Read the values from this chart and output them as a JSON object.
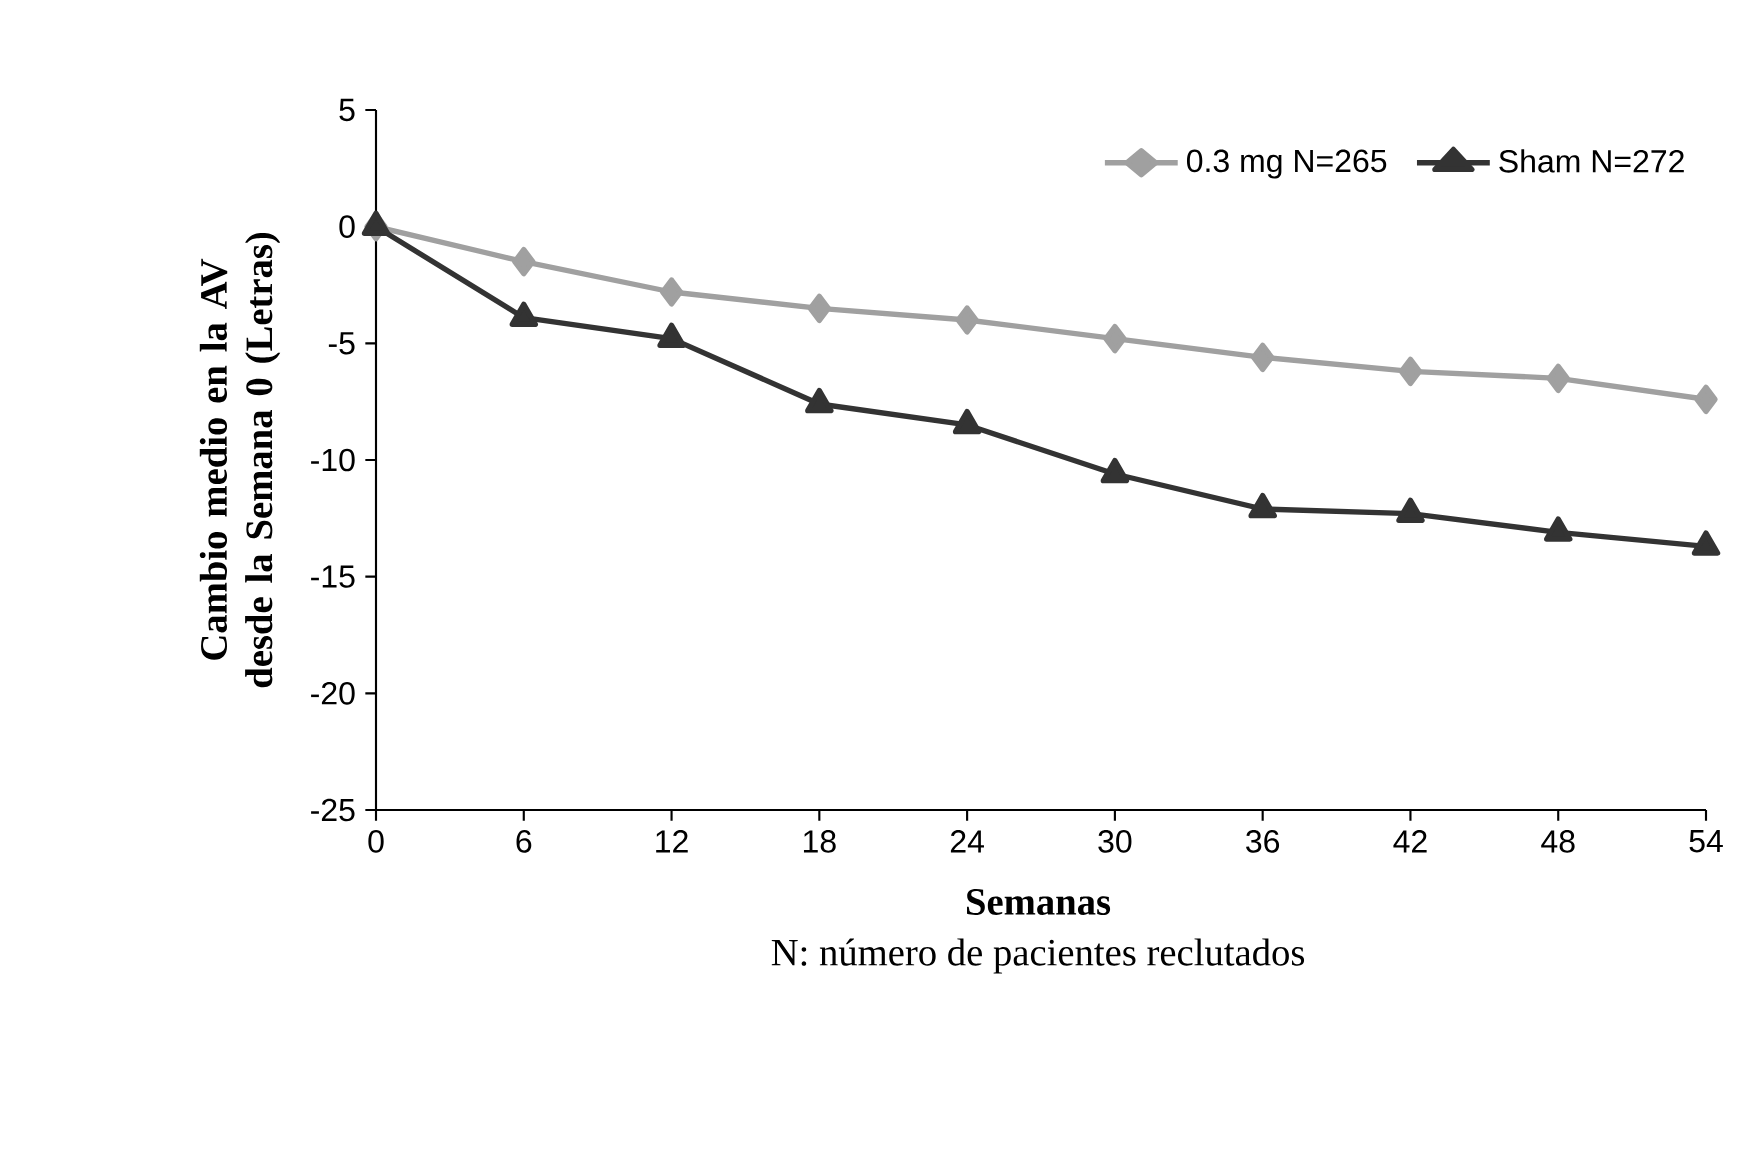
{
  "chart_data": {
    "type": "line",
    "xlabel": "Semanas",
    "ylabel": "Cambio medio en la AV desde la Semana 0 (Letras)",
    "annotations": [
      "N: número de pacientes reclutados"
    ],
    "x": [
      0,
      6,
      12,
      18,
      24,
      30,
      36,
      42,
      48,
      54
    ],
    "series": [
      {
        "name": "0.3 mg N=265",
        "color": "#a0a0a0",
        "marker": "diamond",
        "values": [
          0,
          -1.5,
          -2.8,
          -3.5,
          -4.0,
          -4.8,
          -5.6,
          -6.2,
          -6.5,
          -7.4
        ]
      },
      {
        "name": "Sham N=272",
        "color": "#333333",
        "marker": "triangle",
        "values": [
          0,
          -3.9,
          -4.8,
          -7.6,
          -8.5,
          -10.6,
          -12.1,
          -12.3,
          -13.1,
          -13.7
        ]
      }
    ],
    "xlim": [
      0,
      54
    ],
    "xticks": [
      0,
      6,
      12,
      18,
      24,
      30,
      36,
      42,
      48,
      54
    ],
    "ylim": [
      -25,
      5
    ],
    "yticks": [
      -25,
      -20,
      -15,
      -10,
      -5,
      0,
      5
    ],
    "legend": "top right",
    "line_style": "solid"
  }
}
